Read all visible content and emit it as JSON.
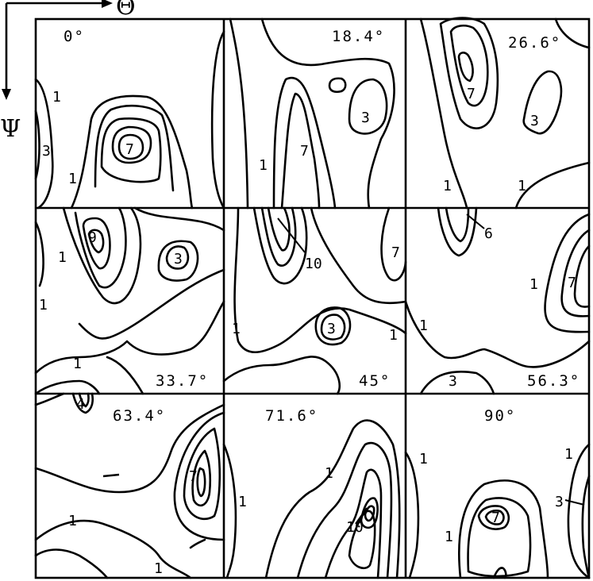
{
  "axes": {
    "horizontal_symbol": "Θ",
    "vertical_symbol": "Ψ"
  },
  "panels": [
    {
      "angle": "0°",
      "labels": [
        "1",
        "3",
        "1",
        "7"
      ]
    },
    {
      "angle": "18.4°",
      "labels": [
        "3",
        "1",
        "7"
      ]
    },
    {
      "angle": "26.6°",
      "labels": [
        "7",
        "3",
        "1",
        "1"
      ]
    },
    {
      "angle": "33.7°",
      "labels": [
        "9",
        "1",
        "3",
        "1",
        "1"
      ]
    },
    {
      "angle": "45°",
      "labels": [
        "10",
        "7",
        "3",
        "1",
        "1"
      ]
    },
    {
      "angle": "56.3°",
      "labels": [
        "6",
        "7",
        "1",
        "1",
        "3"
      ]
    },
    {
      "angle": "63.4°",
      "labels": [
        "4",
        "7",
        "1",
        "1"
      ]
    },
    {
      "angle": "71.6°",
      "labels": [
        "1",
        "1",
        "10"
      ]
    },
    {
      "angle": "90°",
      "labels": [
        "1",
        "1",
        "3",
        "7",
        "1"
      ]
    }
  ]
}
